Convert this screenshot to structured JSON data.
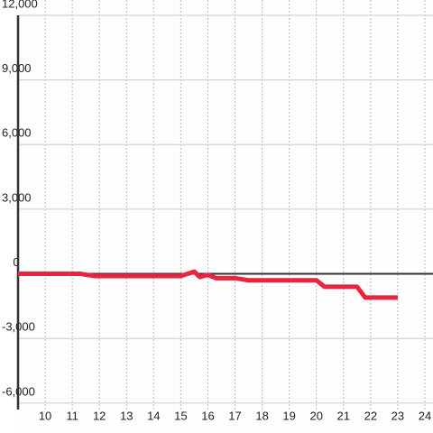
{
  "chart_data": {
    "type": "line",
    "x": [
      9,
      11.3,
      11.8,
      15.0,
      15.5,
      15.7,
      16.0,
      16.3,
      17.0,
      17.5,
      20.0,
      20.3,
      21.5,
      21.8,
      23.0
    ],
    "series": [
      {
        "color": "#e8253f",
        "values": [
          0,
          0,
          -100,
          -100,
          100,
          -150,
          -50,
          -200,
          -200,
          -300,
          -300,
          -600,
          -600,
          -1100,
          -1100
        ]
      }
    ],
    "xlim": [
      9,
      24.3
    ],
    "xticks": [
      10,
      11,
      12,
      13,
      14,
      15,
      16,
      17,
      18,
      19,
      20,
      21,
      22,
      23,
      24
    ],
    "ylim": [
      -6300,
      12000
    ],
    "yticks": [
      {
        "value": 12000,
        "label": "12,000"
      },
      {
        "value": 9000,
        "label": "9,000"
      },
      {
        "value": 6000,
        "label": "6,000"
      },
      {
        "value": 3000,
        "label": "3,000"
      },
      0,
      {
        "value": -3000,
        "label": "-3,000"
      },
      {
        "value": -6000,
        "label": "-6,000"
      }
    ],
    "grid": true
  }
}
